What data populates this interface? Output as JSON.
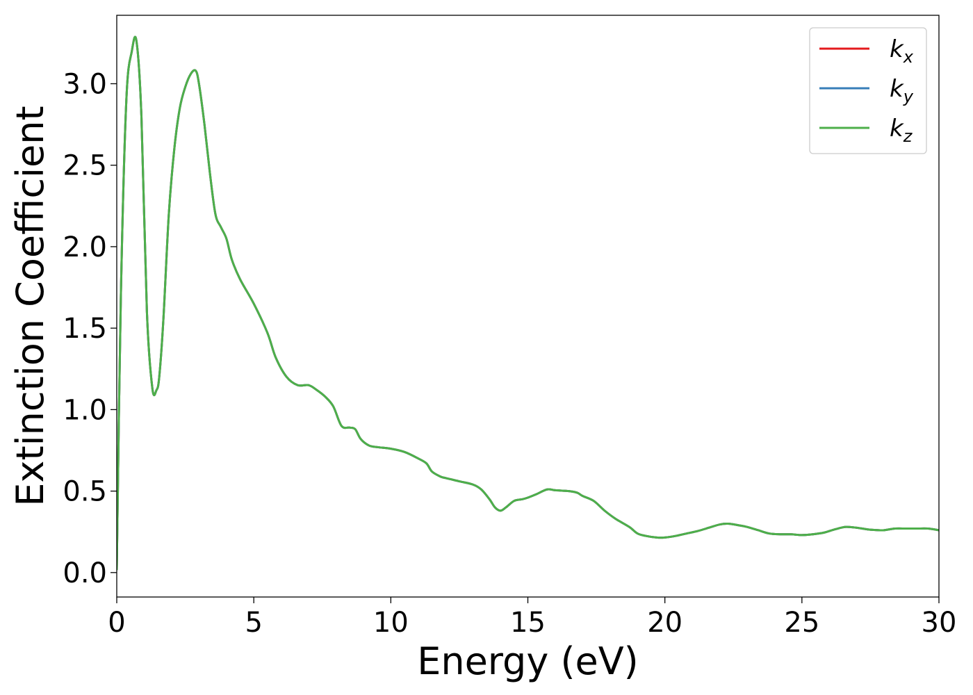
{
  "chart_data": {
    "type": "line",
    "xlabel": "Energy (eV)",
    "ylabel": "Extinction Coefficient",
    "xlim": [
      0,
      30
    ],
    "ylim": [
      -0.15,
      3.42
    ],
    "xticks": [
      0,
      5,
      10,
      15,
      20,
      25,
      30
    ],
    "xtick_labels": [
      "0",
      "5",
      "10",
      "15",
      "20",
      "25",
      "30"
    ],
    "yticks": [
      0.0,
      0.5,
      1.0,
      1.5,
      2.0,
      2.5,
      3.0
    ],
    "ytick_labels": [
      "0.0",
      "0.5",
      "1.0",
      "1.5",
      "2.0",
      "2.5",
      "3.0"
    ],
    "grid": false,
    "legend_position": "top-right",
    "series": [
      {
        "name": "kx",
        "base": "k",
        "sub": "x",
        "color": "#e41a1c",
        "x": [
          0,
          0.15,
          0.35,
          0.55,
          0.72,
          0.9,
          1.1,
          1.3,
          1.45,
          1.55,
          1.7,
          1.9,
          2.1,
          2.3,
          2.5,
          2.7,
          2.88,
          3.0,
          3.2,
          3.4,
          3.6,
          3.8,
          4.0,
          4.2,
          4.5,
          5.0,
          5.5,
          5.8,
          6.2,
          6.6,
          7.0,
          7.3,
          7.6,
          7.9,
          8.2,
          8.5,
          8.7,
          8.9,
          9.2,
          9.5,
          10.0,
          10.5,
          11.0,
          11.3,
          11.5,
          11.8,
          12.0,
          12.5,
          13.0,
          13.3,
          13.6,
          13.8,
          14.0,
          14.2,
          14.5,
          14.8,
          15.0,
          15.3,
          15.7,
          16.0,
          16.5,
          16.8,
          17.0,
          17.4,
          17.8,
          18.2,
          18.7,
          19.0,
          19.3,
          19.7,
          20.0,
          20.4,
          20.8,
          21.2,
          21.6,
          22.0,
          22.3,
          22.7,
          23.0,
          23.4,
          23.8,
          24.2,
          24.6,
          25.0,
          25.4,
          25.8,
          26.2,
          26.6,
          27.0,
          27.4,
          27.8,
          28.0,
          28.4,
          28.8,
          29.2,
          29.6,
          30.0
        ],
        "y": [
          0.02,
          1.7,
          2.9,
          3.2,
          3.26,
          2.8,
          1.6,
          1.13,
          1.12,
          1.2,
          1.55,
          2.2,
          2.6,
          2.85,
          2.98,
          3.06,
          3.08,
          3.0,
          2.75,
          2.45,
          2.2,
          2.12,
          2.05,
          1.92,
          1.8,
          1.65,
          1.47,
          1.32,
          1.2,
          1.15,
          1.15,
          1.12,
          1.08,
          1.02,
          0.9,
          0.89,
          0.88,
          0.82,
          0.78,
          0.77,
          0.76,
          0.74,
          0.7,
          0.67,
          0.62,
          0.59,
          0.58,
          0.56,
          0.54,
          0.51,
          0.45,
          0.4,
          0.38,
          0.4,
          0.44,
          0.45,
          0.46,
          0.48,
          0.51,
          0.505,
          0.5,
          0.49,
          0.47,
          0.44,
          0.38,
          0.33,
          0.28,
          0.24,
          0.225,
          0.215,
          0.215,
          0.225,
          0.24,
          0.255,
          0.275,
          0.295,
          0.3,
          0.29,
          0.28,
          0.26,
          0.24,
          0.235,
          0.235,
          0.23,
          0.235,
          0.245,
          0.265,
          0.28,
          0.275,
          0.265,
          0.26,
          0.26,
          0.27,
          0.27,
          0.27,
          0.27,
          0.26
        ]
      },
      {
        "name": "ky",
        "base": "k",
        "sub": "y",
        "color": "#377eb8",
        "x": [
          0,
          0.15,
          0.35,
          0.55,
          0.72,
          0.9,
          1.1,
          1.3,
          1.45,
          1.55,
          1.7,
          1.9,
          2.1,
          2.3,
          2.5,
          2.7,
          2.88,
          3.0,
          3.2,
          3.4,
          3.6,
          3.8,
          4.0,
          4.2,
          4.5,
          5.0,
          5.5,
          5.8,
          6.2,
          6.6,
          7.0,
          7.3,
          7.6,
          7.9,
          8.2,
          8.5,
          8.7,
          8.9,
          9.2,
          9.5,
          10.0,
          10.5,
          11.0,
          11.3,
          11.5,
          11.8,
          12.0,
          12.5,
          13.0,
          13.3,
          13.6,
          13.8,
          14.0,
          14.2,
          14.5,
          14.8,
          15.0,
          15.3,
          15.7,
          16.0,
          16.5,
          16.8,
          17.0,
          17.4,
          17.8,
          18.2,
          18.7,
          19.0,
          19.3,
          19.7,
          20.0,
          20.4,
          20.8,
          21.2,
          21.6,
          22.0,
          22.3,
          22.7,
          23.0,
          23.4,
          23.8,
          24.2,
          24.6,
          25.0,
          25.4,
          25.8,
          26.2,
          26.6,
          27.0,
          27.4,
          27.8,
          28.0,
          28.4,
          28.8,
          29.2,
          29.6,
          30.0
        ],
        "y": [
          0.02,
          1.7,
          2.9,
          3.2,
          3.26,
          2.8,
          1.6,
          1.13,
          1.12,
          1.2,
          1.55,
          2.2,
          2.6,
          2.85,
          2.98,
          3.06,
          3.08,
          3.0,
          2.75,
          2.45,
          2.2,
          2.12,
          2.05,
          1.92,
          1.8,
          1.65,
          1.47,
          1.32,
          1.2,
          1.15,
          1.15,
          1.12,
          1.08,
          1.02,
          0.9,
          0.89,
          0.88,
          0.82,
          0.78,
          0.77,
          0.76,
          0.74,
          0.7,
          0.67,
          0.62,
          0.59,
          0.58,
          0.56,
          0.54,
          0.51,
          0.45,
          0.4,
          0.38,
          0.4,
          0.44,
          0.45,
          0.46,
          0.48,
          0.51,
          0.505,
          0.5,
          0.49,
          0.47,
          0.44,
          0.38,
          0.33,
          0.28,
          0.24,
          0.225,
          0.215,
          0.215,
          0.225,
          0.24,
          0.255,
          0.275,
          0.295,
          0.3,
          0.29,
          0.28,
          0.26,
          0.24,
          0.235,
          0.235,
          0.23,
          0.235,
          0.245,
          0.265,
          0.28,
          0.275,
          0.265,
          0.26,
          0.26,
          0.27,
          0.27,
          0.27,
          0.27,
          0.26
        ]
      },
      {
        "name": "kz",
        "base": "k",
        "sub": "z",
        "color": "#4daf4a",
        "x": [
          0,
          0.15,
          0.35,
          0.55,
          0.72,
          0.9,
          1.1,
          1.3,
          1.45,
          1.55,
          1.7,
          1.9,
          2.1,
          2.3,
          2.5,
          2.7,
          2.88,
          3.0,
          3.2,
          3.4,
          3.6,
          3.8,
          4.0,
          4.2,
          4.5,
          5.0,
          5.5,
          5.8,
          6.2,
          6.6,
          7.0,
          7.3,
          7.6,
          7.9,
          8.2,
          8.5,
          8.7,
          8.9,
          9.2,
          9.5,
          10.0,
          10.5,
          11.0,
          11.3,
          11.5,
          11.8,
          12.0,
          12.5,
          13.0,
          13.3,
          13.6,
          13.8,
          14.0,
          14.2,
          14.5,
          14.8,
          15.0,
          15.3,
          15.7,
          16.0,
          16.5,
          16.8,
          17.0,
          17.4,
          17.8,
          18.2,
          18.7,
          19.0,
          19.3,
          19.7,
          20.0,
          20.4,
          20.8,
          21.2,
          21.6,
          22.0,
          22.3,
          22.7,
          23.0,
          23.4,
          23.8,
          24.2,
          24.6,
          25.0,
          25.4,
          25.8,
          26.2,
          26.6,
          27.0,
          27.4,
          27.8,
          28.0,
          28.4,
          28.8,
          29.2,
          29.6,
          30.0
        ],
        "y": [
          0.02,
          1.7,
          2.9,
          3.2,
          3.26,
          2.8,
          1.6,
          1.13,
          1.12,
          1.2,
          1.55,
          2.2,
          2.6,
          2.85,
          2.98,
          3.06,
          3.08,
          3.0,
          2.75,
          2.45,
          2.2,
          2.12,
          2.05,
          1.92,
          1.8,
          1.65,
          1.47,
          1.32,
          1.2,
          1.15,
          1.15,
          1.12,
          1.08,
          1.02,
          0.9,
          0.89,
          0.88,
          0.82,
          0.78,
          0.77,
          0.76,
          0.74,
          0.7,
          0.67,
          0.62,
          0.59,
          0.58,
          0.56,
          0.54,
          0.51,
          0.45,
          0.4,
          0.38,
          0.4,
          0.44,
          0.45,
          0.46,
          0.48,
          0.51,
          0.505,
          0.5,
          0.49,
          0.47,
          0.44,
          0.38,
          0.33,
          0.28,
          0.24,
          0.225,
          0.215,
          0.215,
          0.225,
          0.24,
          0.255,
          0.275,
          0.295,
          0.3,
          0.29,
          0.28,
          0.26,
          0.24,
          0.235,
          0.235,
          0.23,
          0.235,
          0.245,
          0.265,
          0.28,
          0.275,
          0.265,
          0.26,
          0.26,
          0.27,
          0.27,
          0.27,
          0.27,
          0.26
        ]
      }
    ]
  }
}
